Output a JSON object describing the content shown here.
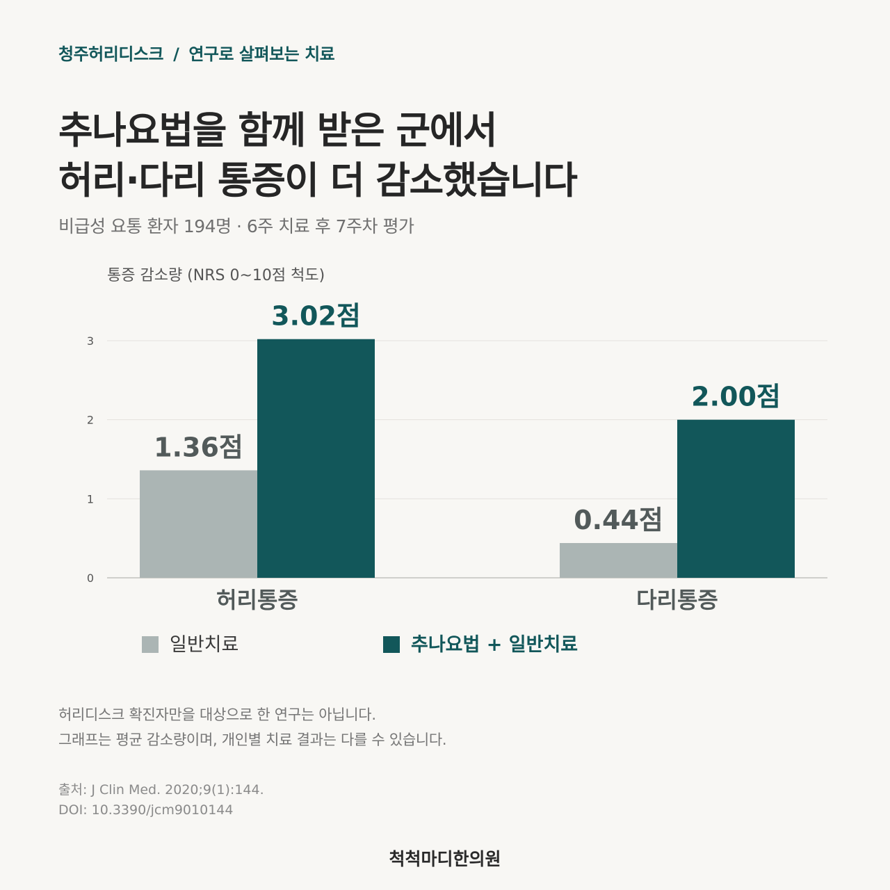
{
  "header": {
    "clinic": "청주허리디스크",
    "separator": "/",
    "section": "연구로 살펴보는 치료"
  },
  "title": {
    "line1": "추나요법을 함께 받은 군에서",
    "line2": "허리·다리 통증이 더 감소했습니다"
  },
  "subtitle": "비급성 요통 환자 194명 · 6주 치료 후 7주차 평가",
  "colors": {
    "accent": "#12575a",
    "control": "#abb5b4",
    "grid": "#e3e2de"
  },
  "chart_data": {
    "type": "bar",
    "ylabel": "통증 감소량 (NRS 0~10점 척도)",
    "ylim": [
      0,
      3
    ],
    "yticks": [
      0,
      1,
      2,
      3
    ],
    "categories": [
      "허리통증",
      "다리통증"
    ],
    "series": [
      {
        "name": "일반치료",
        "values": [
          1.36,
          0.44
        ],
        "labels": [
          "1.36점",
          "0.44점"
        ],
        "color": "#abb5b4",
        "label_color": "#525a5a"
      },
      {
        "name": "추나요법 + 일반치료",
        "values": [
          3.02,
          2.0
        ],
        "labels": [
          "3.02점",
          "2.00점"
        ],
        "color": "#12575a",
        "label_color": "#12575a"
      }
    ],
    "grid": true,
    "legend": "bottom"
  },
  "legend": {
    "control": "일반치료",
    "treatment": "추나요법 + 일반치료"
  },
  "note": {
    "line1": "허리디스크 확진자만을 대상으로 한 연구는 아닙니다.",
    "line2": "그래프는 평균 감소량이며, 개인별 치료 결과는 다를 수 있습니다."
  },
  "source": {
    "line1": "출처: J Clin Med. 2020;9(1):144.",
    "line2": "DOI: 10.3390/jcm9010144"
  },
  "footer": "척척마디한의원"
}
